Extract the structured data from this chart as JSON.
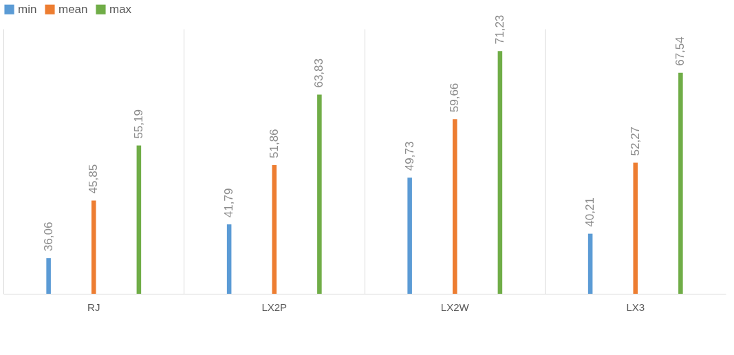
{
  "chart_data": {
    "type": "bar",
    "categories": [
      "RJ",
      "LX2P",
      "LX2W",
      "LX3"
    ],
    "series": [
      {
        "name": "min",
        "color": "#5b9bd5",
        "values": [
          36.06,
          41.79,
          49.73,
          40.21
        ],
        "value_labels": [
          "36,06",
          "41,79",
          "49,73",
          "40,21"
        ]
      },
      {
        "name": "mean",
        "color": "#ed7d31",
        "values": [
          45.85,
          51.86,
          59.66,
          52.27
        ],
        "value_labels": [
          "45,85",
          "51,86",
          "59,66",
          "52,27"
        ]
      },
      {
        "name": "max",
        "color": "#70ad47",
        "values": [
          55.19,
          63.83,
          71.23,
          67.54
        ],
        "value_labels": [
          "55,19",
          "63,83",
          "71,23",
          "67,54"
        ]
      }
    ],
    "ylim": [
      30,
      75
    ],
    "grid": "x",
    "legend": "top",
    "tick_labels": "x"
  }
}
